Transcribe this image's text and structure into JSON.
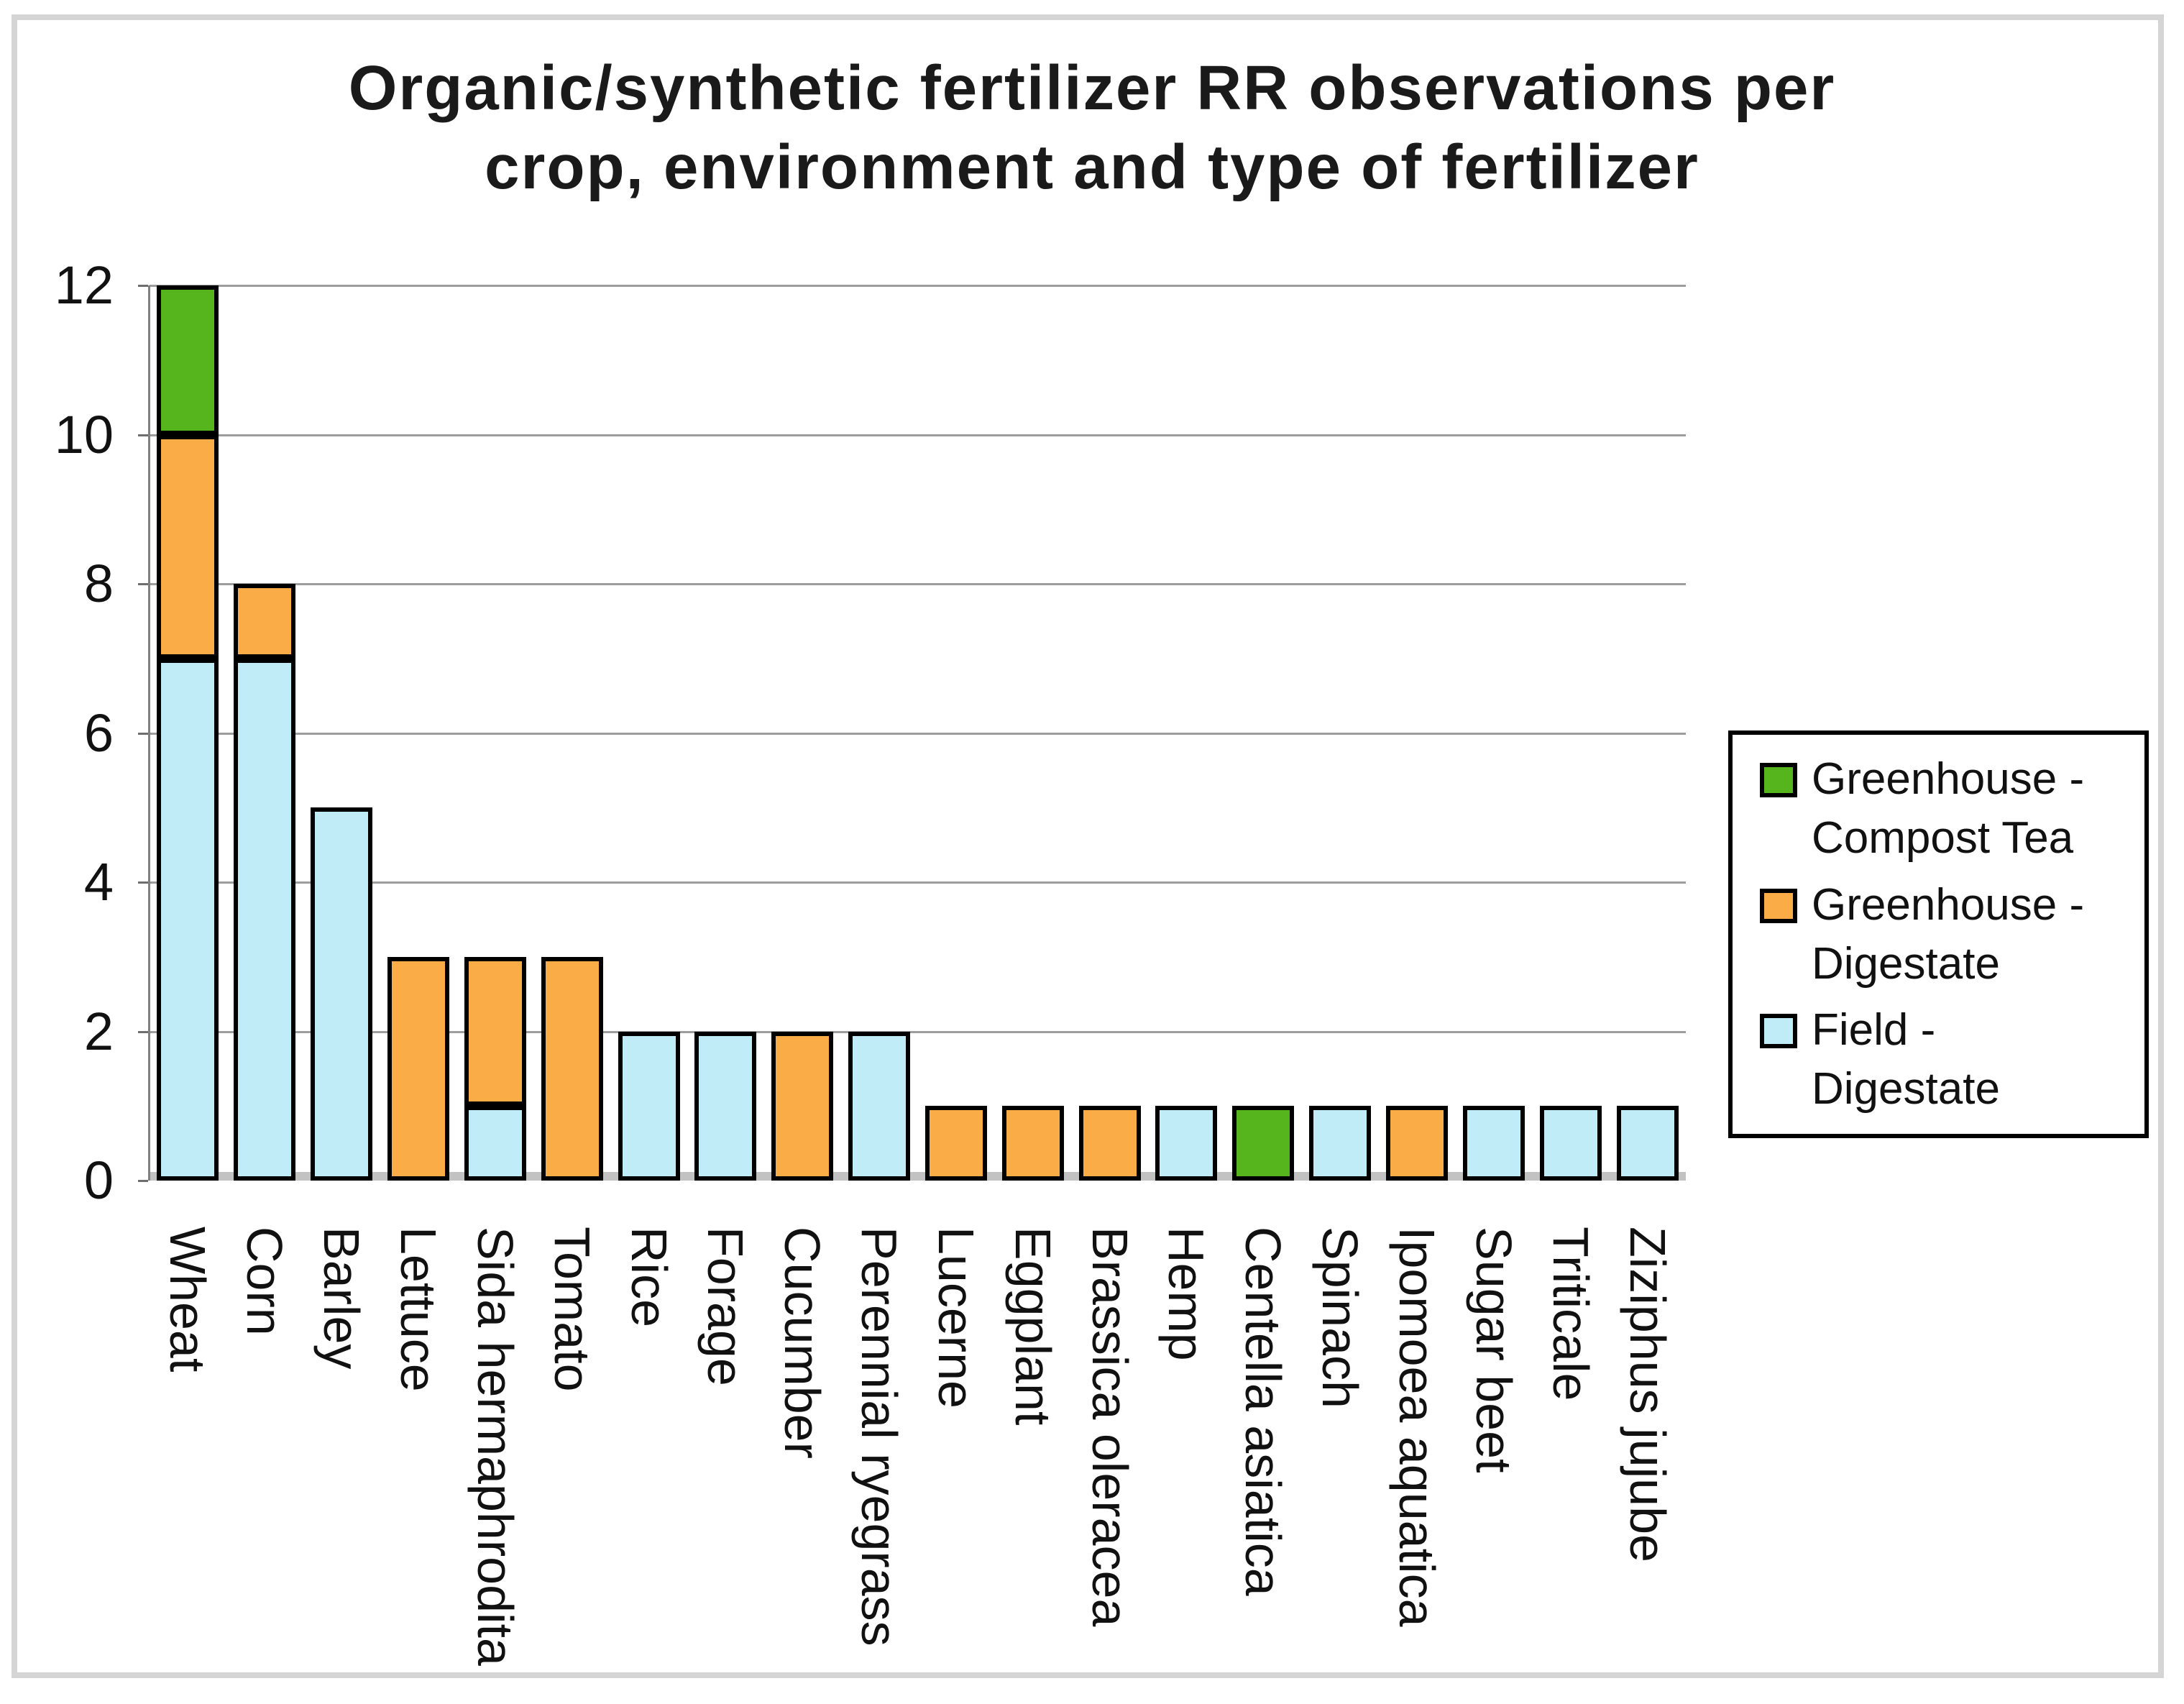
{
  "title": {
    "line1": "Organic/synthetic fertilizer RR observations per",
    "line2": "crop, environment and type of fertilizer"
  },
  "chart_data": {
    "type": "bar",
    "stacked": true,
    "title": "Organic/synthetic fertilizer RR observations per crop, environment and type of fertilizer",
    "categories": [
      "Wheat",
      "Corn",
      "Barley",
      "Lettuce",
      "Sida hermaphrodita",
      "Tomato",
      "Rice",
      "Forage",
      "Cucumber",
      "Perennial ryegrass",
      "Lucerne",
      "Eggplant",
      "Brassica oleracea",
      "Hemp",
      "Centella asiatica",
      "Spinach",
      "Ipomoea aquatica",
      "Sugar beet",
      "Triticale",
      "Ziziphus jujube"
    ],
    "series": [
      {
        "name": "Field - Digestate",
        "color": "#BFECF7",
        "values": [
          7,
          7,
          5,
          0,
          1,
          0,
          2,
          2,
          0,
          2,
          0,
          0,
          0,
          1,
          0,
          1,
          0,
          1,
          1,
          1
        ]
      },
      {
        "name": "Greenhouse - Digestate",
        "color": "#FAAC46",
        "values": [
          3,
          1,
          0,
          3,
          2,
          3,
          0,
          0,
          2,
          0,
          1,
          1,
          1,
          0,
          0,
          0,
          1,
          0,
          0,
          0
        ]
      },
      {
        "name": "Greenhouse - Compost Tea",
        "color": "#56B41C",
        "values": [
          2,
          0,
          0,
          0,
          0,
          0,
          0,
          0,
          0,
          0,
          0,
          0,
          0,
          0,
          1,
          0,
          0,
          0,
          0,
          0
        ]
      }
    ],
    "totals": [
      12,
      8,
      5,
      3,
      3,
      3,
      2,
      2,
      2,
      2,
      1,
      1,
      1,
      1,
      1,
      1,
      1,
      1,
      1,
      1
    ],
    "xlabel": "",
    "ylabel": "",
    "ylim": [
      0,
      12
    ],
    "yticks": [
      0,
      2,
      4,
      6,
      8,
      10,
      12
    ],
    "grid": true,
    "legend_position": "right"
  },
  "legend": {
    "entries": [
      {
        "line1": "Greenhouse -",
        "line2": "Compost Tea",
        "series": "Greenhouse - Compost Tea",
        "color": "#56B41C"
      },
      {
        "line1": "Greenhouse -",
        "line2": "Digestate",
        "series": "Greenhouse - Digestate",
        "color": "#FAAC46"
      },
      {
        "line1": "Field -",
        "line2": "Digestate",
        "series": "Field - Digestate",
        "color": "#BFECF7"
      }
    ]
  },
  "colors": {
    "bar_border": "#000000",
    "gridline": "#9D9D9D",
    "y_axis": "#808080",
    "bottom_axis": "#C2C2C2",
    "frame_border": "#D5D5D5",
    "background": "#FFFFFF"
  }
}
